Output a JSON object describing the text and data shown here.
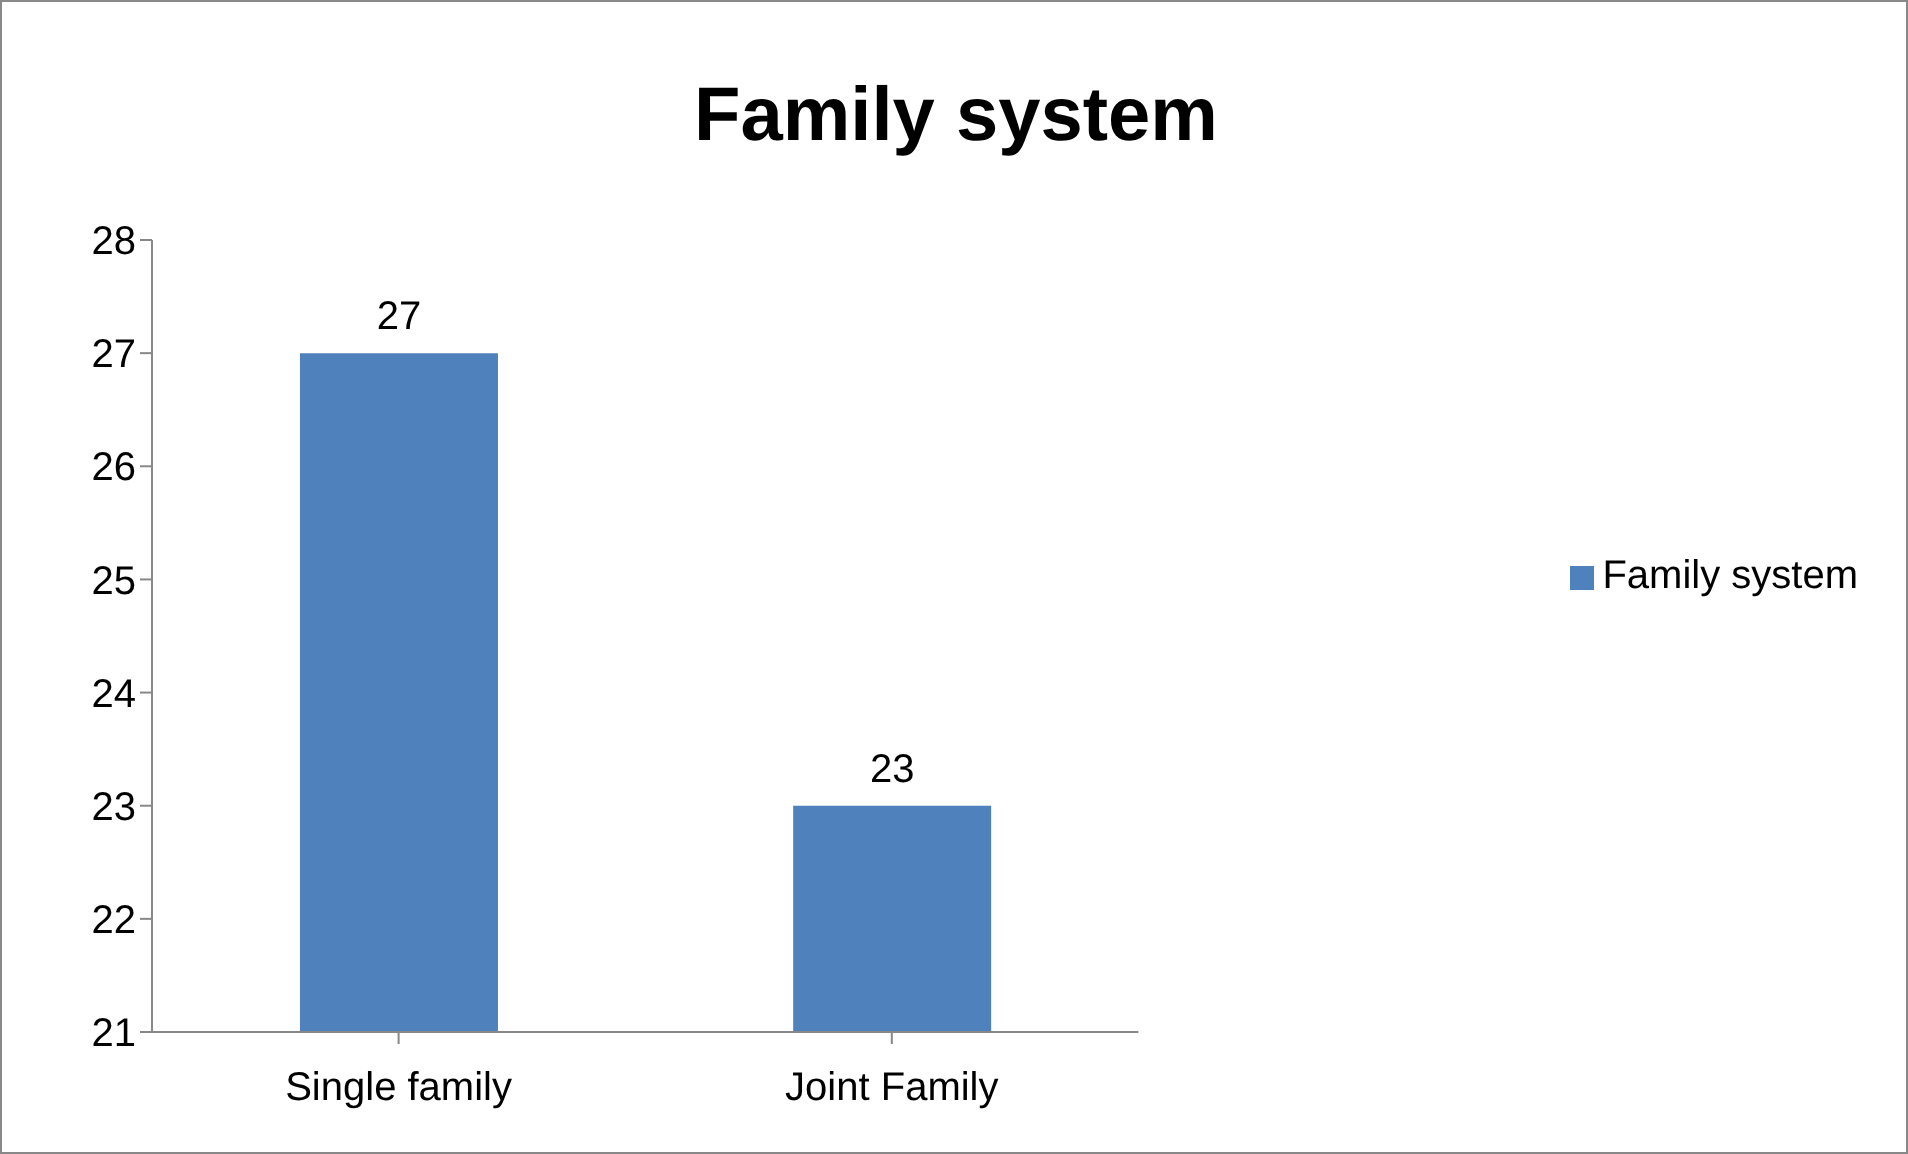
{
  "chart_data": {
    "type": "bar",
    "title": "Family system",
    "categories": [
      "Single family",
      "Joint Family"
    ],
    "series": [
      {
        "name": "Family system",
        "color": "#4f81bd",
        "values": [
          27,
          23
        ]
      }
    ],
    "ylim": [
      21,
      28
    ],
    "yticks": [
      21,
      22,
      23,
      24,
      25,
      26,
      27,
      28
    ],
    "grid": false,
    "legend": "right",
    "data_labels": true
  }
}
